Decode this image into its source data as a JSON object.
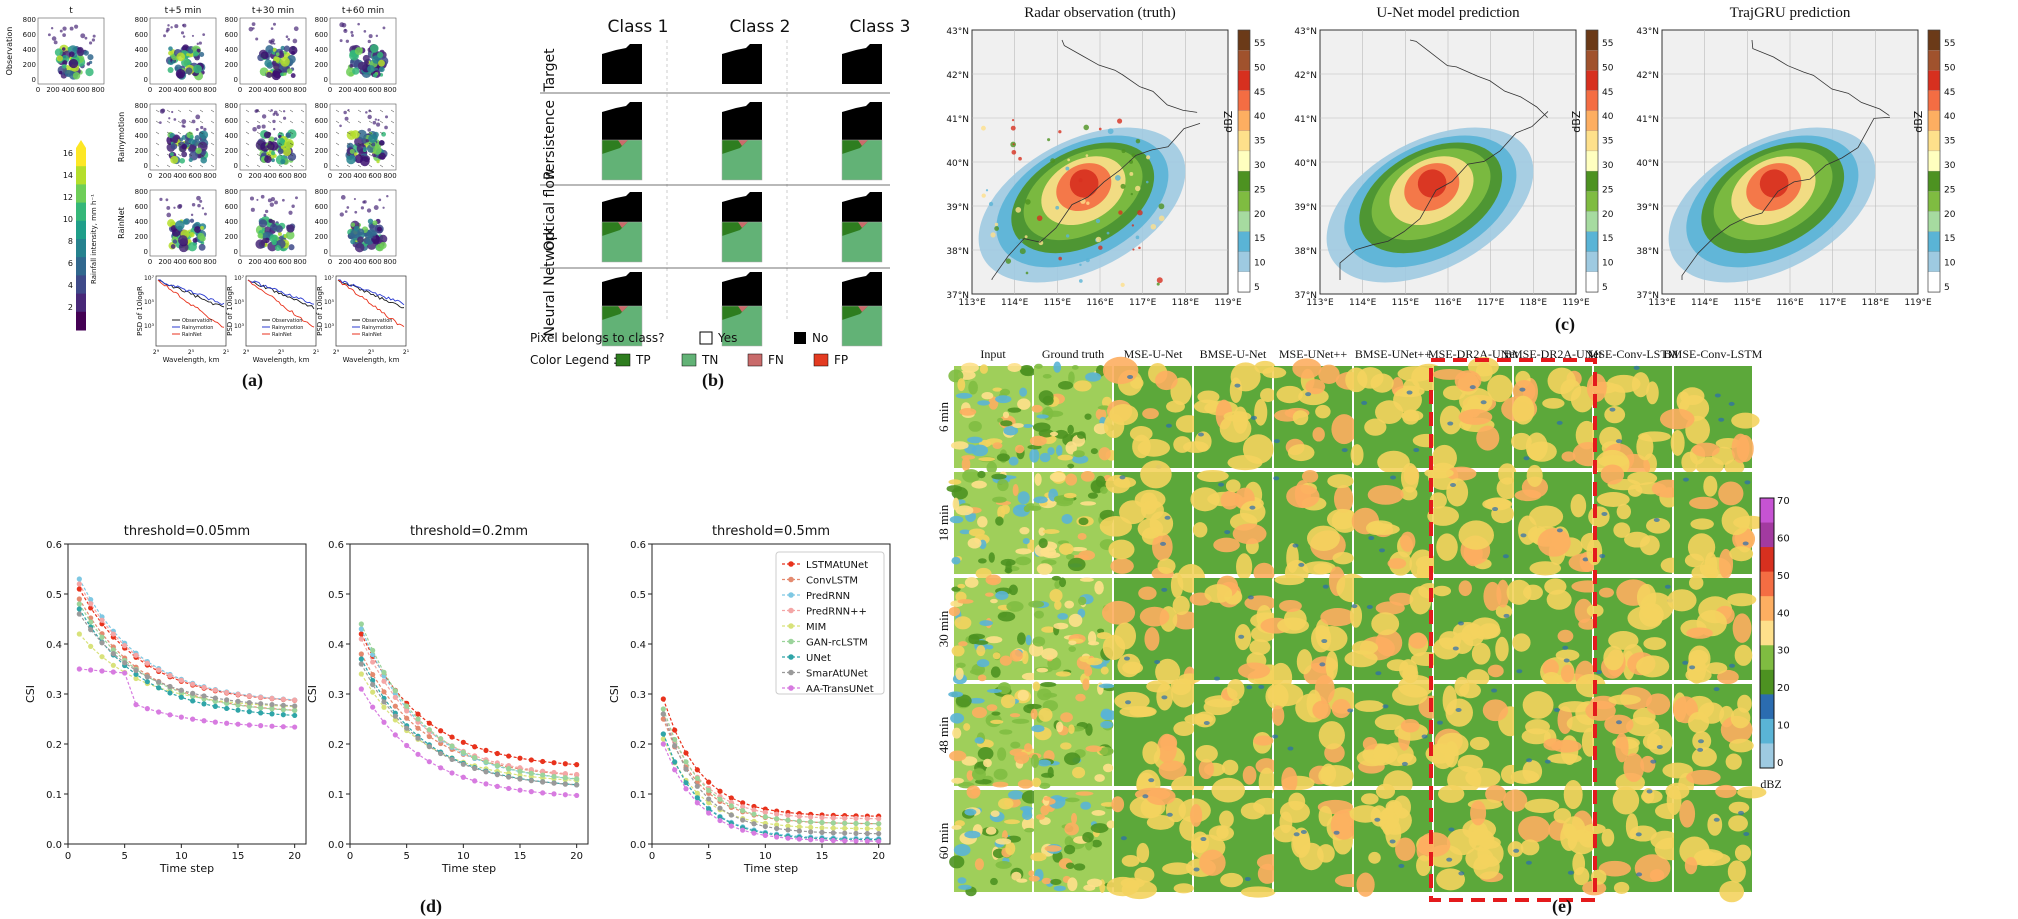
{
  "captions": {
    "a": "(a)",
    "b": "(b)",
    "c": "(c)",
    "d": "(d)",
    "e": "(e)"
  },
  "panel_a": {
    "columns": [
      "t",
      "t+5 min",
      "t+30 min",
      "t+60 min"
    ],
    "rows": [
      "Observation",
      "Rainymotion",
      "RainNet"
    ],
    "xticks": [
      "0",
      "200",
      "400",
      "600",
      "800"
    ],
    "yticks": [
      "800",
      "600",
      "400",
      "200",
      "0"
    ],
    "colorbar_label": "Rainfall intensity, mm h⁻¹",
    "colorbar_ticks": [
      "16",
      "14",
      "12",
      "10",
      "8",
      "6",
      "4",
      "2"
    ],
    "psd_ylabel": "PSD of 10logR",
    "psd_xlabel": "Wavelength, km",
    "psd_yticks": [
      "10⁷",
      "10⁵",
      "10³"
    ],
    "psd_xticks": [
      "2⁹",
      "2⁵",
      "2¹"
    ],
    "legend": [
      "Observation",
      "Rainymotion",
      "RainNet"
    ],
    "colors": {
      "observation": "#1a1a1a",
      "rainymotion": "#2b3bd1",
      "rainnet": "#e8321c"
    }
  },
  "panel_b": {
    "classes": [
      "Class 1",
      "Class 2",
      "Class 3"
    ],
    "rows": [
      "Target",
      "Persistence",
      "Optical flow",
      "Neural Network"
    ],
    "legend_question": "Pixel belongs to class?",
    "yes": "Yes",
    "no": "No",
    "color_legend_label": "Color Legend :",
    "color_legend": [
      {
        "label": "TP",
        "color": "#2e7d1f"
      },
      {
        "label": "TN",
        "color": "#62b276"
      },
      {
        "label": "FN",
        "color": "#c96b6b"
      },
      {
        "label": "FP",
        "color": "#e33b21"
      }
    ]
  },
  "panel_c": {
    "titles": [
      "Radar observation (truth)",
      "U-Net model prediction",
      "TrajGRU prediction"
    ],
    "lat_ticks": [
      "43°N",
      "42°N",
      "41°N",
      "40°N",
      "39°N",
      "38°N",
      "37°N"
    ],
    "lon_ticks": [
      "113°E",
      "114°E",
      "115°E",
      "116°E",
      "117°E",
      "118°E",
      "119°E"
    ],
    "colorbar_ticks": [
      "55",
      "50",
      "45",
      "40",
      "35",
      "30",
      "25",
      "20",
      "15",
      "10",
      "5"
    ],
    "colorbar_label": "dBZ",
    "colorbar_colors": [
      "#6b3a18",
      "#a0522d",
      "#d7301f",
      "#f46d43",
      "#fdae61",
      "#fee08b",
      "#ffffbf",
      "#4d9221",
      "#7fbc41",
      "#a6dba0",
      "#5ab4d6",
      "#9ecae1",
      "#ffffff"
    ]
  },
  "panel_d": {
    "titles": [
      "threshold=0.05mm",
      "threshold=0.2mm",
      "threshold=0.5mm"
    ],
    "chart_data": [
      {
        "type": "line",
        "title": "threshold=0.05mm",
        "xlabel": "Time step",
        "ylabel": "CSI",
        "ylim": [
          0,
          0.6
        ],
        "xlim": [
          0,
          21
        ],
        "x": [
          1,
          20
        ],
        "series": [
          {
            "name": "LSTMAtUNet",
            "start": 0.51,
            "end": 0.28
          },
          {
            "name": "ConvLSTM",
            "start": 0.49,
            "end": 0.26
          },
          {
            "name": "PredRNN",
            "start": 0.53,
            "end": 0.28
          },
          {
            "name": "PredRNN++",
            "start": 0.52,
            "end": 0.28
          },
          {
            "name": "MIM",
            "start": 0.42,
            "end": 0.27
          },
          {
            "name": "GAN-rcLSTM",
            "start": 0.48,
            "end": 0.26
          },
          {
            "name": "UNet",
            "start": 0.47,
            "end": 0.25
          },
          {
            "name": "SmarAtUNet",
            "start": 0.46,
            "end": 0.27
          },
          {
            "name": "AA-TransUNet",
            "start": 0.35,
            "end": 0.23
          }
        ]
      },
      {
        "type": "line",
        "title": "threshold=0.2mm",
        "xlabel": "Time step",
        "ylabel": "CSI",
        "ylim": [
          0,
          0.6
        ],
        "xlim": [
          0,
          21
        ],
        "x": [
          1,
          20
        ],
        "series": [
          {
            "name": "LSTMAtUNet",
            "start": 0.42,
            "end": 0.15
          },
          {
            "name": "ConvLSTM",
            "start": 0.38,
            "end": 0.13
          },
          {
            "name": "PredRNN",
            "start": 0.43,
            "end": 0.12
          },
          {
            "name": "PredRNN++",
            "start": 0.41,
            "end": 0.13
          },
          {
            "name": "MIM",
            "start": 0.34,
            "end": 0.12
          },
          {
            "name": "GAN-rcLSTM",
            "start": 0.44,
            "end": 0.12
          },
          {
            "name": "UNet",
            "start": 0.37,
            "end": 0.11
          },
          {
            "name": "SmarAtUNet",
            "start": 0.36,
            "end": 0.11
          },
          {
            "name": "AA-TransUNet",
            "start": 0.31,
            "end": 0.09
          }
        ]
      },
      {
        "type": "line",
        "title": "threshold=0.5mm",
        "xlabel": "Time step",
        "ylabel": "CSI",
        "ylim": [
          0,
          0.6
        ],
        "xlim": [
          0,
          21
        ],
        "x": [
          1,
          20
        ],
        "series": [
          {
            "name": "LSTMAtUNet",
            "start": 0.29,
            "end": 0.055
          },
          {
            "name": "ConvLSTM",
            "start": 0.25,
            "end": 0.04
          },
          {
            "name": "PredRNN",
            "start": 0.22,
            "end": 0.01
          },
          {
            "name": "PredRNN++",
            "start": 0.26,
            "end": 0.05
          },
          {
            "name": "MIM",
            "start": 0.21,
            "end": 0.03
          },
          {
            "name": "GAN-rcLSTM",
            "start": 0.27,
            "end": 0.04
          },
          {
            "name": "UNet",
            "start": 0.22,
            "end": 0.008
          },
          {
            "name": "SmarAtUNet",
            "start": 0.26,
            "end": 0.02
          },
          {
            "name": "AA-TransUNet",
            "start": 0.2,
            "end": 0.005
          }
        ]
      }
    ],
    "xticks": [
      "0",
      "5",
      "10",
      "15",
      "20"
    ],
    "yticks": [
      "0.6",
      "0.5",
      "0.4",
      "0.3",
      "0.2",
      "0.1",
      "0.0"
    ],
    "xlabel": "Time step",
    "ylabel": "CSI",
    "legend": [
      "LSTMAtUNet",
      "ConvLSTM",
      "PredRNN",
      "PredRNN++",
      "MIM",
      "GAN-rcLSTM",
      "UNet",
      "SmarAtUNet",
      "AA-TransUNet"
    ],
    "colors": [
      "#e8321c",
      "#e48a6f",
      "#7ec8e3",
      "#f4a6a6",
      "#d8e27a",
      "#9bd49b",
      "#2fa5a8",
      "#9a9a9a",
      "#d77be0"
    ]
  },
  "panel_e": {
    "columns": [
      "Input",
      "Ground truth",
      "MSE-U-Net",
      "BMSE-U-Net",
      "MSE-UNet++",
      "BMSE-UNet++",
      "MSE-DR2A-UNet",
      "BMSE-DR2A-UNet",
      "MSE-Conv-LSTM",
      "BMSE-Conv-LSTM"
    ],
    "rows": [
      "6 min",
      "18 min",
      "30 min",
      "48 min",
      "60 min"
    ],
    "colorbar_ticks": [
      "70",
      "60",
      "50",
      "40",
      "30",
      "20",
      "10",
      "0"
    ],
    "colorbar_label": "dBZ",
    "highlight_color": "#e41a1c"
  }
}
